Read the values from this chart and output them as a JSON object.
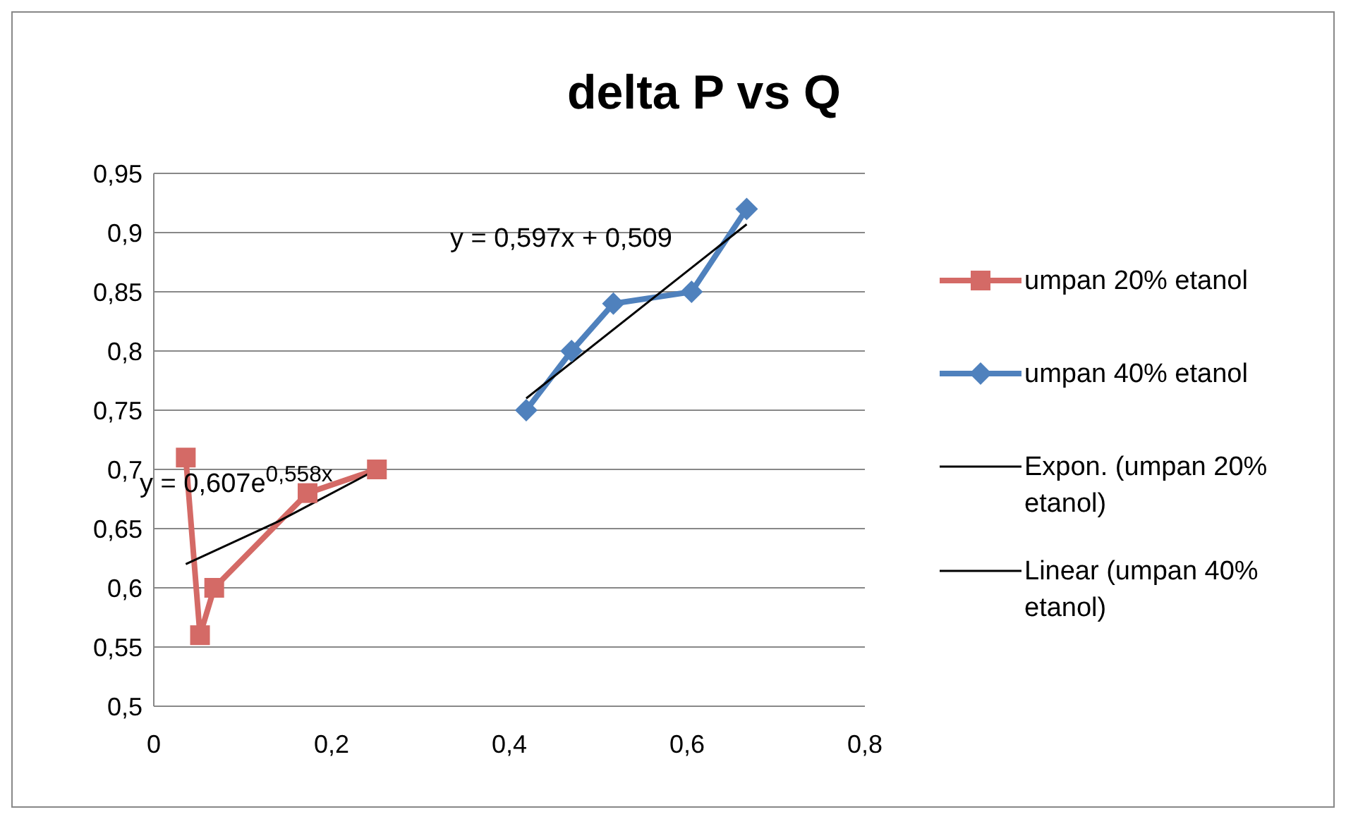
{
  "chart_data": {
    "type": "line",
    "title": "delta P vs Q",
    "xlim": [
      0,
      0.8
    ],
    "xticks": [
      0,
      {
        "value": 0.2,
        "label": "0,2"
      },
      {
        "value": 0.4,
        "label": "0,4"
      },
      {
        "value": 0.6,
        "label": "0,6"
      },
      {
        "value": 0.8,
        "label": "0,8"
      }
    ],
    "ylim": [
      0.5,
      0.95
    ],
    "yticks": [
      {
        "value": 0.5,
        "label": "0,5"
      },
      {
        "value": 0.55,
        "label": "0,55"
      },
      {
        "value": 0.6,
        "label": "0,6"
      },
      {
        "value": 0.65,
        "label": "0,65"
      },
      {
        "value": 0.7,
        "label": "0,7"
      },
      {
        "value": 0.75,
        "label": "0,75"
      },
      {
        "value": 0.8,
        "label": "0,8"
      },
      {
        "value": 0.85,
        "label": "0,85"
      },
      {
        "value": 0.9,
        "label": "0,9"
      },
      {
        "value": 0.95,
        "label": "0,95"
      }
    ],
    "grid": "y",
    "legend": "right",
    "series": [
      {
        "name": "umpan 20% etanol",
        "color": "#d46a66",
        "marker": "square",
        "x": [
          0.036,
          0.052,
          0.068,
          0.173,
          0.251
        ],
        "values": [
          0.71,
          0.56,
          0.6,
          0.68,
          0.7
        ]
      },
      {
        "name": "umpan 40% etanol",
        "color": "#4f81bd",
        "marker": "diamond",
        "x": [
          0.419,
          0.47,
          0.517,
          0.605,
          0.667
        ],
        "values": [
          0.75,
          0.8,
          0.84,
          0.85,
          0.92
        ]
      },
      {
        "name": "Expon. (umpan 20% etanol)",
        "color": "#000000",
        "marker": "none",
        "x": [
          0.036,
          0.14,
          0.251
        ],
        "values": [
          0.62,
          0.656,
          0.7
        ]
      },
      {
        "name": "Linear (umpan 40% etanol)",
        "color": "#000000",
        "marker": "none",
        "x": [
          0.419,
          0.667
        ],
        "values": [
          0.76,
          0.907
        ]
      }
    ],
    "annotations": [
      "y = 0,597x + 0,509",
      "y = 0,607e$^{0,558x}$"
    ]
  }
}
